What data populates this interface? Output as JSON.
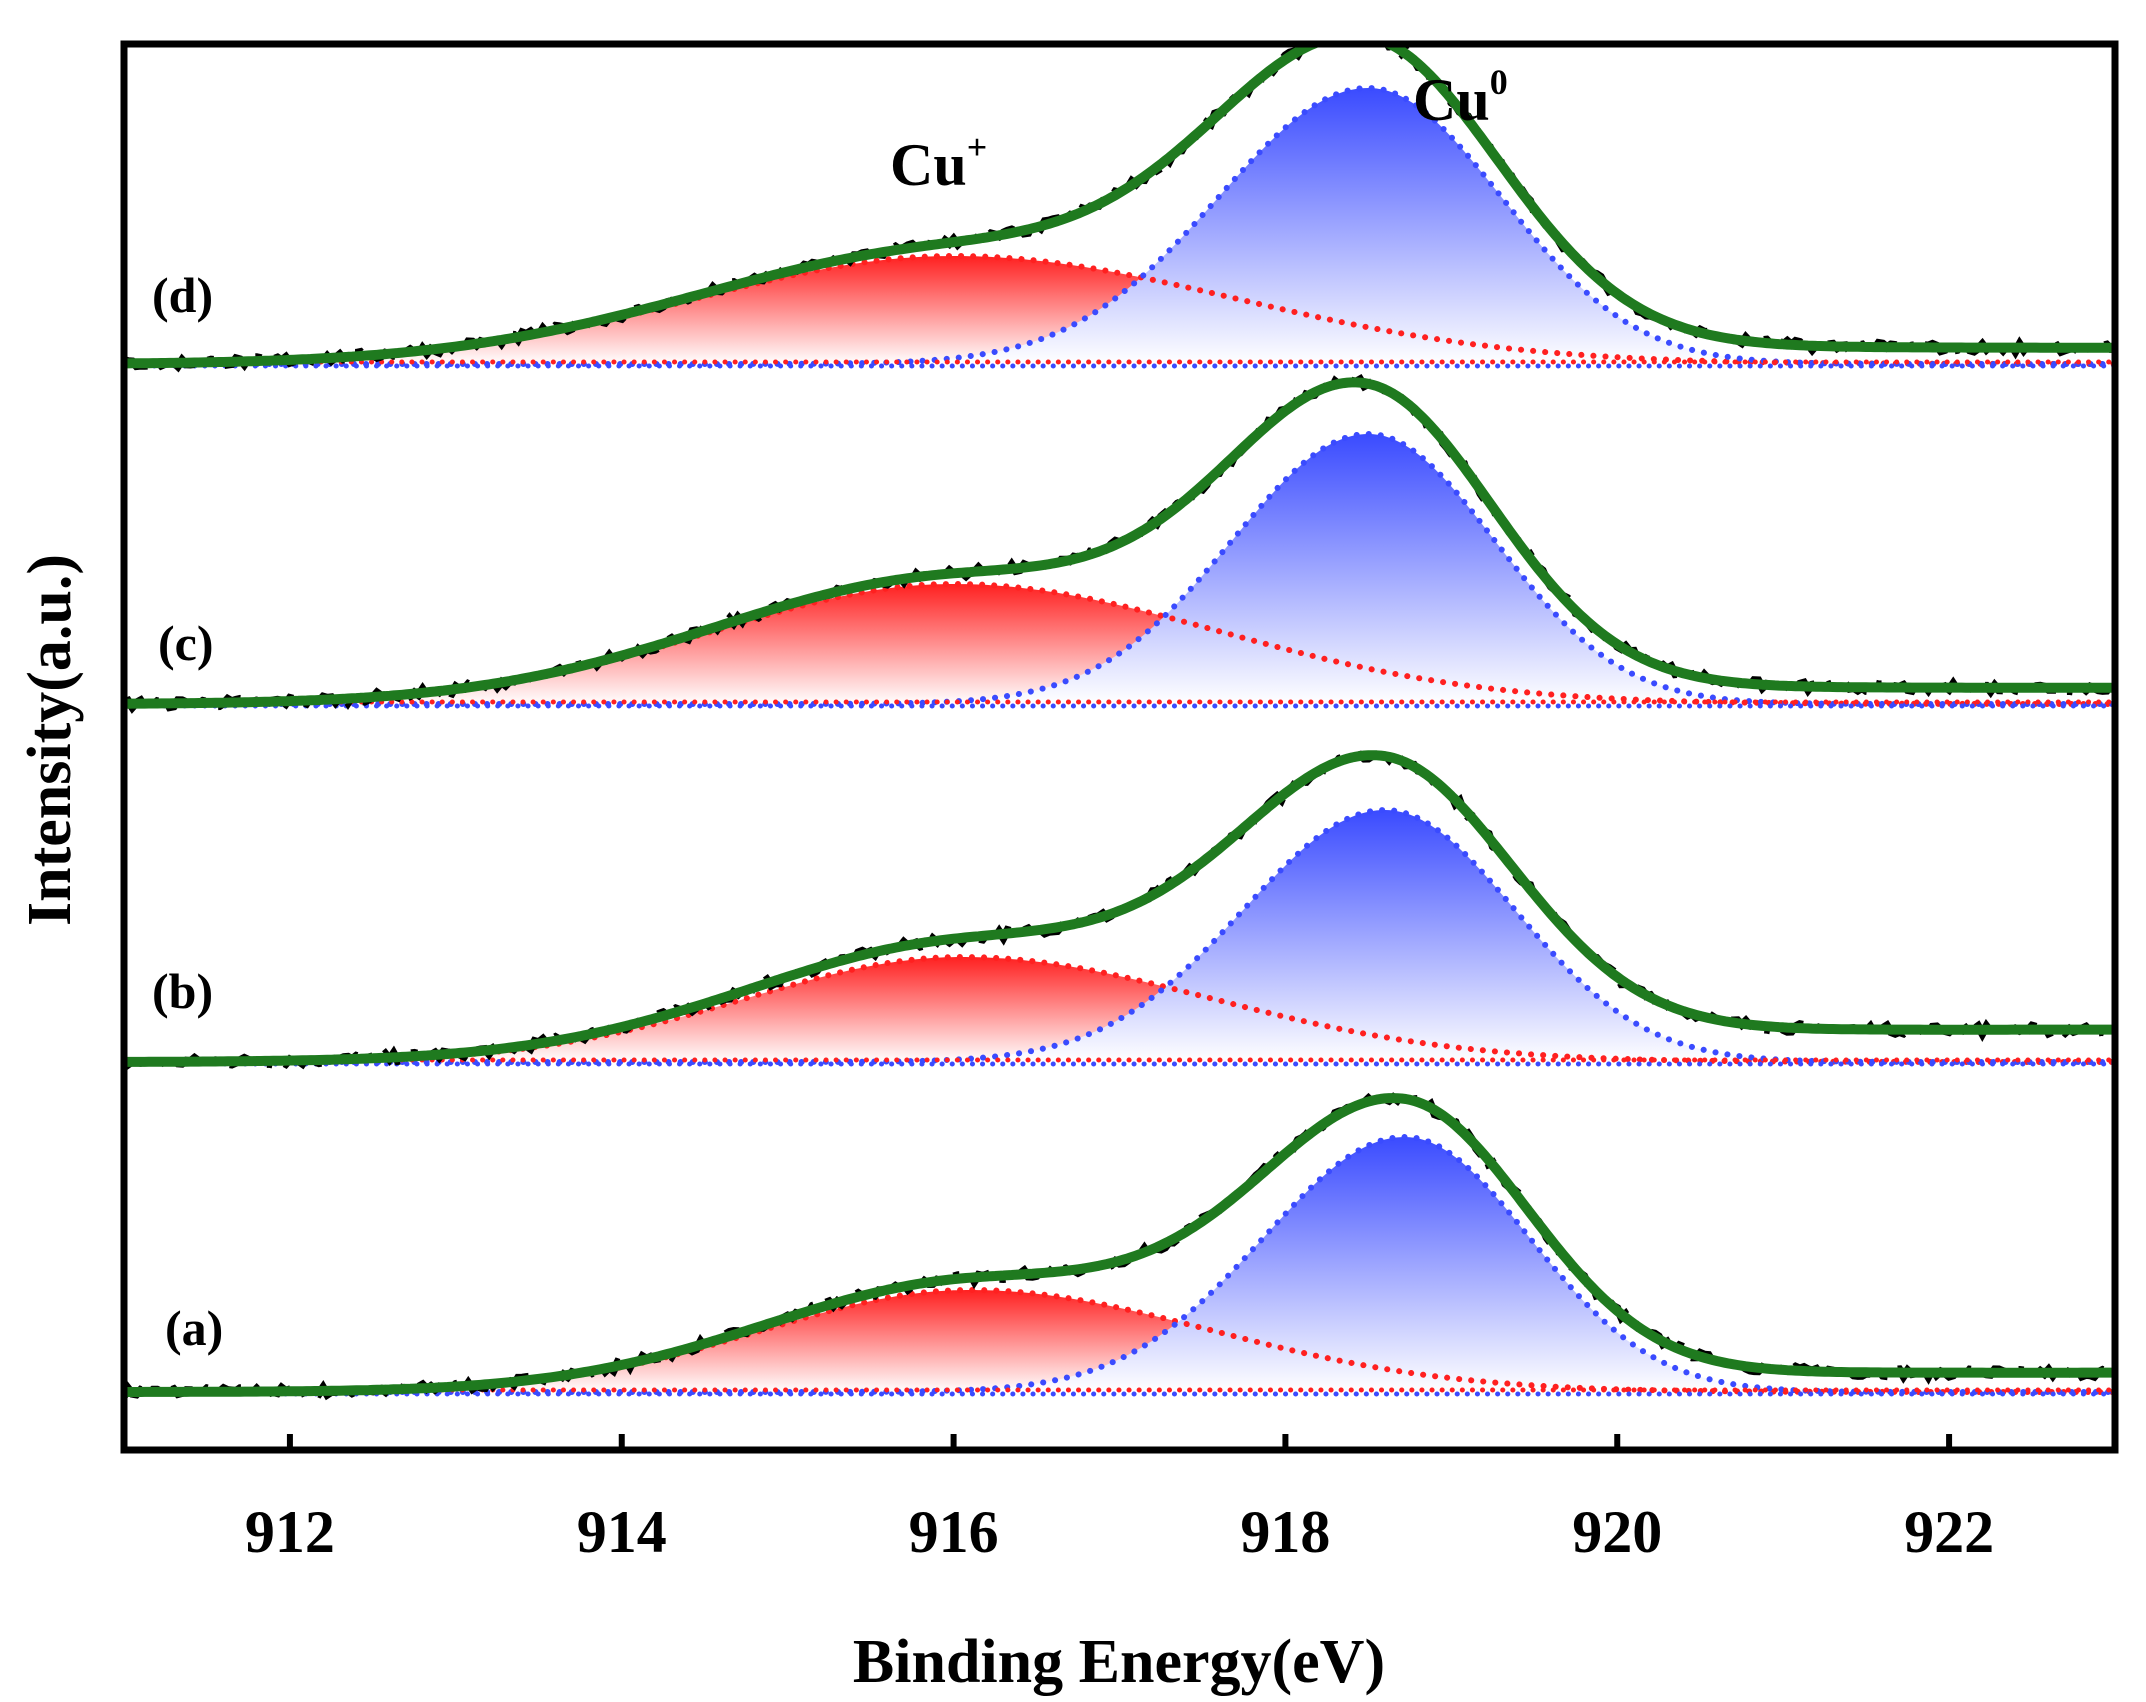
{
  "chart_data": {
    "type": "line",
    "title": "",
    "xlabel": "Binding Energy(eV)",
    "ylabel": "Intensity(a.u.)",
    "xlim": [
      911,
      923
    ],
    "xticks": [
      912,
      914,
      916,
      918,
      920,
      922
    ],
    "xtick_labels": [
      "912",
      "914",
      "916",
      "918",
      "920",
      "922"
    ],
    "y_ticks_shown": false,
    "grid": false,
    "colors": {
      "raw": "#000000",
      "fit": "#1f7a1f",
      "cu_plus": "#ff2020",
      "cu_zero": "#3a4bff",
      "frame": "#000000"
    },
    "peak_labels": [
      {
        "text": "Cu",
        "superscript": "+",
        "x": 915.9,
        "y": 0.82
      },
      {
        "text": "Cu",
        "superscript": "0",
        "x": 918.9,
        "y": 1.03
      }
    ],
    "series": [
      {
        "name": "(a)",
        "label": "(a)",
        "cu_plus": {
          "center": 916.1,
          "height": 0.34,
          "sigma_low": 1.25,
          "sigma_high": 1.45
        },
        "cu_zero": {
          "center": 918.72,
          "height": 0.85,
          "sigma_low": 0.85,
          "sigma_high": 0.75
        },
        "background": {
          "step": 0.065,
          "center": 916.0,
          "width": 1.0
        }
      },
      {
        "name": "(b)",
        "label": "(b)",
        "cu_plus": {
          "center": 916.05,
          "height": 0.35,
          "sigma_low": 1.3,
          "sigma_high": 1.5
        },
        "cu_zero": {
          "center": 918.6,
          "height": 0.84,
          "sigma_low": 0.85,
          "sigma_high": 0.78
        },
        "background": {
          "step": 0.11,
          "center": 916.0,
          "width": 1.2
        }
      },
      {
        "name": "(c)",
        "label": "(c)",
        "cu_plus": {
          "center": 916.0,
          "height": 0.4,
          "sigma_low": 1.45,
          "sigma_high": 1.6
        },
        "cu_zero": {
          "center": 918.5,
          "height": 0.9,
          "sigma_low": 0.82,
          "sigma_high": 0.76
        },
        "background": {
          "step": 0.055,
          "center": 916.0,
          "width": 1.1
        }
      },
      {
        "name": "(d)",
        "label": "(d)",
        "cu_plus": {
          "center": 916.0,
          "height": 0.36,
          "sigma_low": 1.55,
          "sigma_high": 1.7
        },
        "cu_zero": {
          "center": 918.5,
          "height": 0.92,
          "sigma_low": 0.9,
          "sigma_high": 0.8
        },
        "background": {
          "step": 0.055,
          "center": 916.0,
          "width": 1.1
        }
      }
    ]
  }
}
